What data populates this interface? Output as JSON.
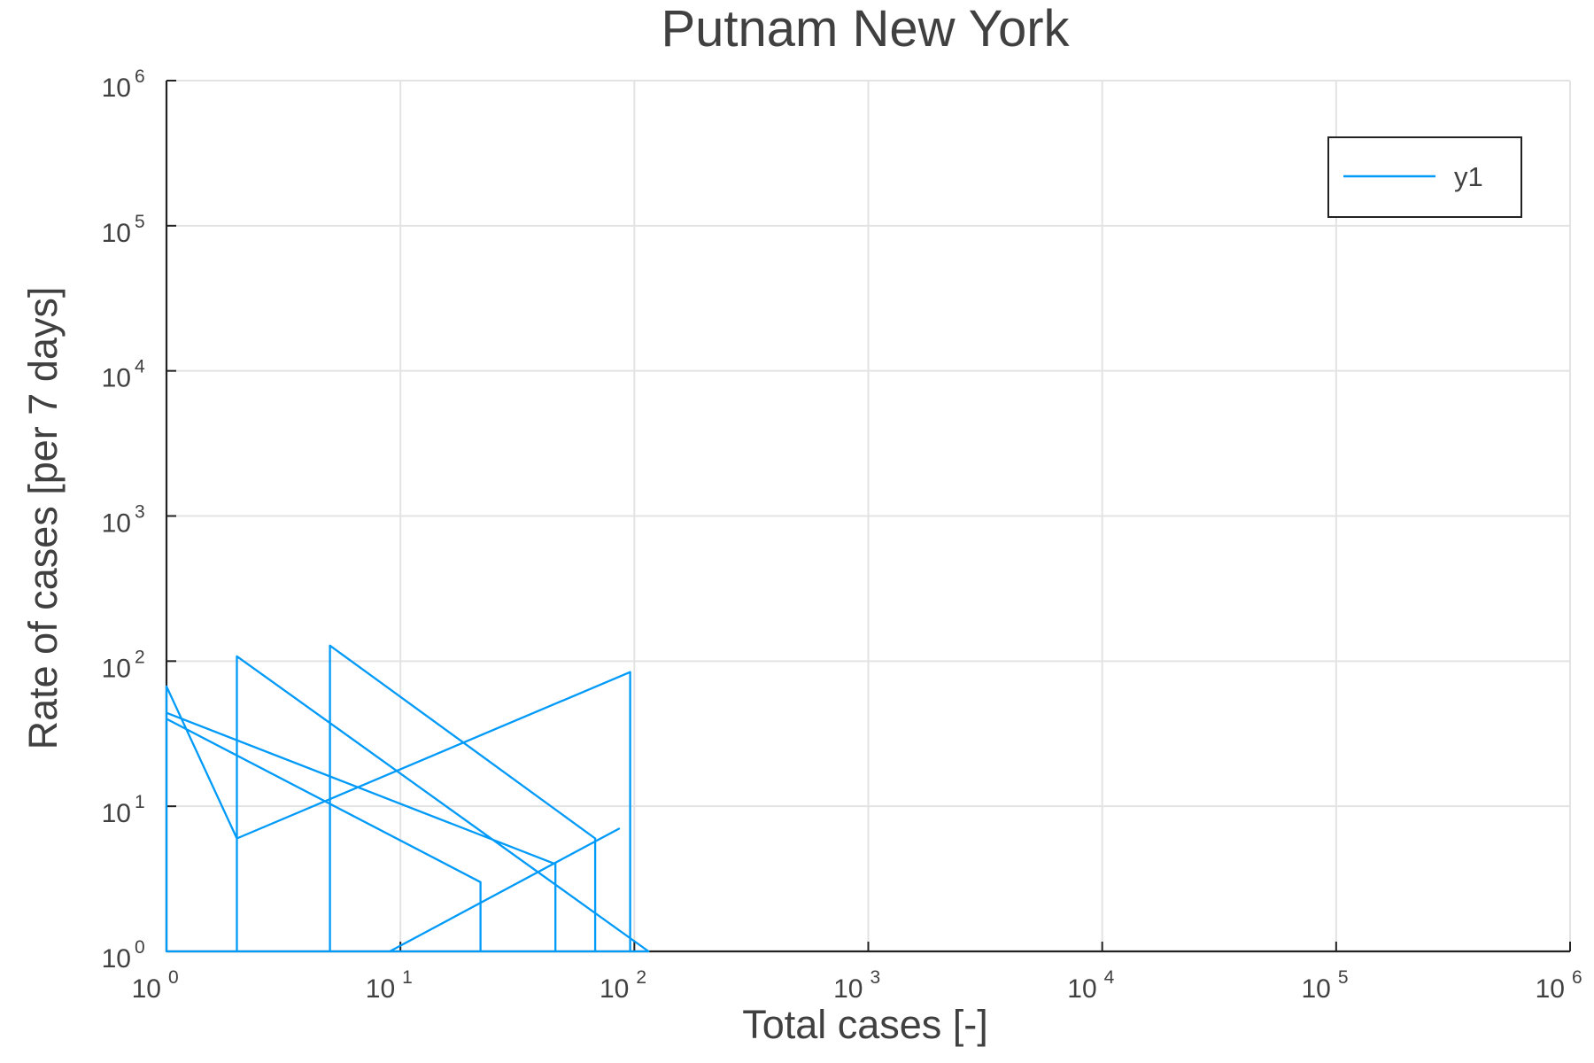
{
  "chart_data": {
    "type": "line",
    "title": "Putnam New York",
    "xlabel": "Total cases [-]",
    "ylabel": "Rate of cases [per 7 days]",
    "x_scale": "log",
    "y_scale": "log",
    "xlim": [
      1,
      1000000
    ],
    "ylim": [
      1,
      1000000
    ],
    "grid": true,
    "legend_position": "top-right",
    "x_ticks": [
      {
        "base": "10",
        "exp": "0",
        "value": 1
      },
      {
        "base": "10",
        "exp": "1",
        "value": 10
      },
      {
        "base": "10",
        "exp": "2",
        "value": 100
      },
      {
        "base": "10",
        "exp": "3",
        "value": 1000
      },
      {
        "base": "10",
        "exp": "4",
        "value": 10000
      },
      {
        "base": "10",
        "exp": "5",
        "value": 100000
      },
      {
        "base": "10",
        "exp": "6",
        "value": 1000000
      }
    ],
    "y_ticks": [
      {
        "base": "10",
        "exp": "0",
        "value": 1
      },
      {
        "base": "10",
        "exp": "1",
        "value": 10
      },
      {
        "base": "10",
        "exp": "2",
        "value": 100
      },
      {
        "base": "10",
        "exp": "3",
        "value": 1000
      },
      {
        "base": "10",
        "exp": "4",
        "value": 10000
      },
      {
        "base": "10",
        "exp": "5",
        "value": 100000
      },
      {
        "base": "10",
        "exp": "6",
        "value": 1000000
      }
    ],
    "series": [
      {
        "name": "y1",
        "color": "#009af9",
        "x": [
          1,
          1,
          46,
          46,
          1,
          1,
          22,
          22,
          1,
          1,
          2,
          2,
          96,
          96,
          2,
          2,
          5,
          5,
          68,
          68,
          2,
          2,
          115,
          115,
          9,
          9,
          86,
          86
        ],
        "y": [
          1,
          44,
          4,
          1,
          1,
          40,
          3,
          1,
          1,
          67,
          6,
          1,
          1,
          84,
          6,
          1,
          1,
          128,
          6,
          1,
          1,
          108,
          1,
          1,
          1,
          1,
          7,
          7
        ]
      }
    ]
  }
}
